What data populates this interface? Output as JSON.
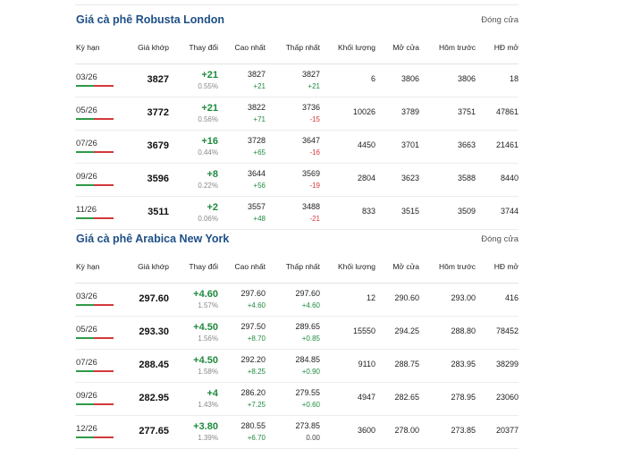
{
  "robusta": {
    "title": "Giá cà phê Robusta London",
    "status": "Đóng cửa",
    "headers": [
      "Kỳ hạn",
      "Giá khớp",
      "Thay đổi",
      "Cao nhất",
      "Thấp nhất",
      "Khối lượng",
      "Mở cửa",
      "Hôm trước",
      "HĐ mở"
    ],
    "rows": [
      {
        "term": "03/26",
        "price": "3827",
        "change": "+21",
        "pct": "0.55%",
        "high": "3827",
        "high_chg": "+21",
        "low": "3827",
        "low_chg": "+21",
        "volume": "6",
        "open": "3806",
        "prev": "3806",
        "oi": "18"
      },
      {
        "term": "05/26",
        "price": "3772",
        "change": "+21",
        "pct": "0.56%",
        "high": "3822",
        "high_chg": "+71",
        "low": "3736",
        "low_chg": "-15",
        "volume": "10026",
        "open": "3789",
        "prev": "3751",
        "oi": "47861"
      },
      {
        "term": "07/26",
        "price": "3679",
        "change": "+16",
        "pct": "0.44%",
        "high": "3728",
        "high_chg": "+65",
        "low": "3647",
        "low_chg": "-16",
        "volume": "4450",
        "open": "3701",
        "prev": "3663",
        "oi": "21461"
      },
      {
        "term": "09/26",
        "price": "3596",
        "change": "+8",
        "pct": "0.22%",
        "high": "3644",
        "high_chg": "+56",
        "low": "3569",
        "low_chg": "-19",
        "volume": "2804",
        "open": "3623",
        "prev": "3588",
        "oi": "8440"
      },
      {
        "term": "11/26",
        "price": "3511",
        "change": "+2",
        "pct": "0.06%",
        "high": "3557",
        "high_chg": "+48",
        "low": "3488",
        "low_chg": "-21",
        "volume": "833",
        "open": "3515",
        "prev": "3509",
        "oi": "3744"
      }
    ]
  },
  "arabica": {
    "title": "Giá cà phê Arabica New York",
    "status": "Đóng cửa",
    "headers": [
      "Kỳ hạn",
      "Giá khớp",
      "Thay đổi",
      "Cao nhất",
      "Thấp nhất",
      "Khối lượng",
      "Mở cửa",
      "Hôm trước",
      "HĐ mở"
    ],
    "rows": [
      {
        "term": "03/26",
        "price": "297.60",
        "change": "+4.60",
        "pct": "1.57%",
        "high": "297.60",
        "high_chg": "+4.60",
        "low": "297.60",
        "low_chg": "+4.60",
        "volume": "12",
        "open": "290.60",
        "prev": "293.00",
        "oi": "416"
      },
      {
        "term": "05/26",
        "price": "293.30",
        "change": "+4.50",
        "pct": "1.56%",
        "high": "297.50",
        "high_chg": "+8.70",
        "low": "289.65",
        "low_chg": "+0.85",
        "volume": "15550",
        "open": "294.25",
        "prev": "288.80",
        "oi": "78452"
      },
      {
        "term": "07/26",
        "price": "288.45",
        "change": "+4.50",
        "pct": "1.58%",
        "high": "292.20",
        "high_chg": "+8.25",
        "low": "284.85",
        "low_chg": "+0.90",
        "volume": "9110",
        "open": "288.75",
        "prev": "283.95",
        "oi": "38299"
      },
      {
        "term": "09/26",
        "price": "282.95",
        "change": "+4",
        "pct": "1.43%",
        "high": "286.20",
        "high_chg": "+7.25",
        "low": "279.55",
        "low_chg": "+0.60",
        "volume": "4947",
        "open": "282.65",
        "prev": "278.95",
        "oi": "23060"
      },
      {
        "term": "12/26",
        "price": "277.65",
        "change": "+3.80",
        "pct": "1.39%",
        "high": "280.55",
        "high_chg": "+6.70",
        "low": "273.85",
        "low_chg": "0.00",
        "volume": "3600",
        "open": "278.00",
        "prev": "273.85",
        "oi": "20377"
      }
    ]
  }
}
